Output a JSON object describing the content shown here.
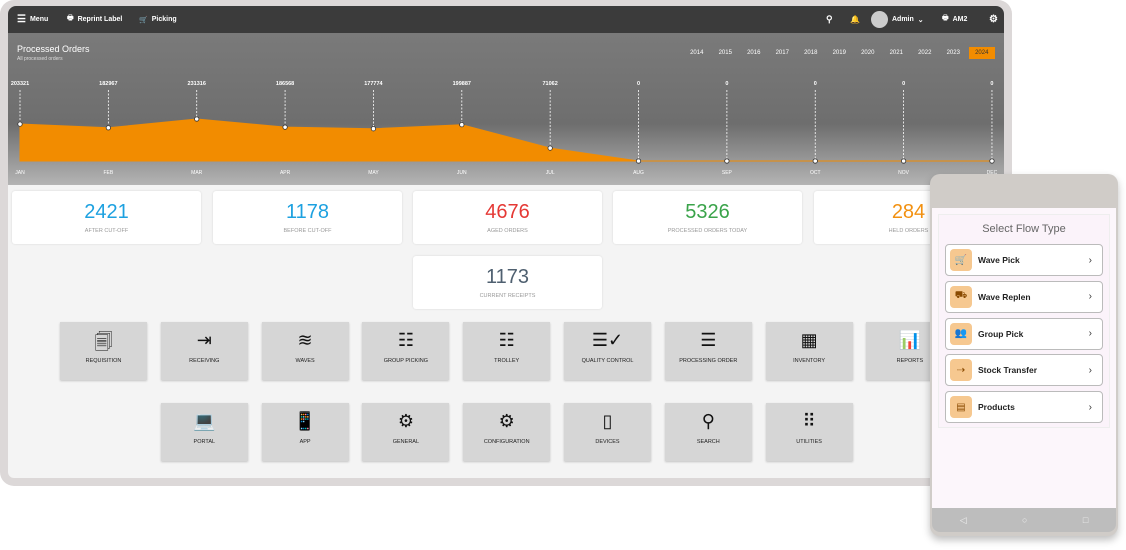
{
  "topbar": {
    "menu": "Menu",
    "reprint": "Reprint Label",
    "picking": "Picking",
    "user": "Admin",
    "printer": "AM2"
  },
  "chart_data": {
    "type": "area",
    "title": "Processed Orders",
    "subtitle": "All processed orders",
    "categories": [
      "JAN",
      "FEB",
      "MAR",
      "APR",
      "MAY",
      "JUN",
      "JUL",
      "AUG",
      "SEP",
      "OCT",
      "NOV",
      "DEC"
    ],
    "values": [
      203321,
      182967,
      231316,
      186568,
      177774,
      199887,
      71062,
      0,
      0,
      0,
      0,
      0
    ],
    "color": "#f28c00",
    "grid": false
  },
  "years": [
    "2014",
    "2015",
    "2016",
    "2017",
    "2018",
    "2019",
    "2020",
    "2021",
    "2022",
    "2023",
    "2024"
  ],
  "selected_year": "2024",
  "stats": [
    {
      "value": "2421",
      "label": "AFTER CUT-OFF",
      "color": "#1da1e0"
    },
    {
      "value": "1178",
      "label": "BEFORE CUT-OFF",
      "color": "#1da1e0"
    },
    {
      "value": "4676",
      "label": "AGED ORDERS",
      "color": "#e53935"
    },
    {
      "value": "5326",
      "label": "PROCESSED ORDERS TODAY",
      "color": "#3aa34a"
    },
    {
      "value": "284",
      "label": "HELD ORDERS",
      "color": "#f29111"
    },
    {
      "value": "1173",
      "label": "CURRENT RECEIPTS",
      "color": "#4f6070"
    }
  ],
  "tiles": [
    {
      "label": "REQUISITION",
      "icon": "copy-icon",
      "g": "🗐"
    },
    {
      "label": "RECEIVING",
      "icon": "login-icon",
      "g": "⇥"
    },
    {
      "label": "WAVES",
      "icon": "waves-icon",
      "g": "≋"
    },
    {
      "label": "GROUP PICKING",
      "icon": "list-icon",
      "g": "☷"
    },
    {
      "label": "TROLLEY",
      "icon": "list-icon",
      "g": "☷"
    },
    {
      "label": "QUALITY CONTROL",
      "icon": "checklist-icon",
      "g": "☰✓"
    },
    {
      "label": "PROCESSING ORDER",
      "icon": "numbered-list-icon",
      "g": "☰"
    },
    {
      "label": "INVENTORY",
      "icon": "grid-icon",
      "g": "▦"
    },
    {
      "label": "REPORTS",
      "icon": "report-icon",
      "g": "📊"
    },
    {
      "label": "PORTAL",
      "icon": "laptop-icon",
      "g": "💻"
    },
    {
      "label": "APP",
      "icon": "phone-share-icon",
      "g": "📱"
    },
    {
      "label": "GENERAL",
      "icon": "gear-icon",
      "g": "⚙"
    },
    {
      "label": "CONFIGURATION",
      "icon": "gear-icon",
      "g": "⚙"
    },
    {
      "label": "DEVICES",
      "icon": "phone-icon",
      "g": "▯"
    },
    {
      "label": "SEARCH",
      "icon": "search-icon",
      "g": "⚲"
    },
    {
      "label": "UTILITIES",
      "icon": "apps-icon",
      "g": "⠿"
    }
  ],
  "phone": {
    "title": "Select Flow Type",
    "items": [
      {
        "label": "Wave Pick",
        "icon": "cart-icon",
        "g": "🛒"
      },
      {
        "label": "Wave Replen",
        "icon": "forklift-icon",
        "g": "⛟"
      },
      {
        "label": "Group Pick",
        "icon": "group-icon",
        "g": "👥"
      },
      {
        "label": "Stock Transfer",
        "icon": "transfer-icon",
        "g": "⇢"
      },
      {
        "label": "Products",
        "icon": "archive-icon",
        "g": "▤"
      }
    ]
  }
}
